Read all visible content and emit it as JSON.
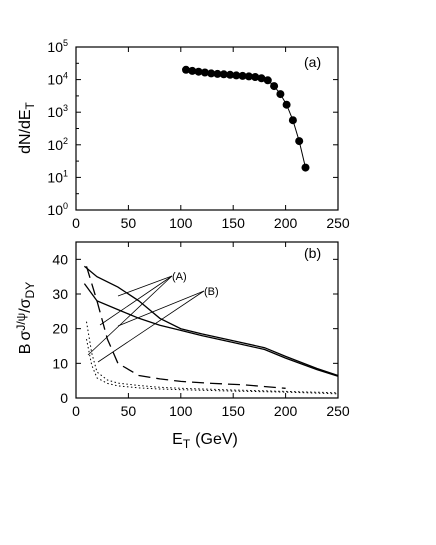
{
  "chart_data": [
    {
      "type": "line",
      "panel_label": "(a)",
      "ylabel_main": "dN/dE",
      "ylabel_sub": "T",
      "xlim": [
        0,
        250
      ],
      "ylim_log10": [
        0,
        5
      ],
      "yscale": "log",
      "x_ticks": [
        "0",
        "50",
        "100",
        "150",
        "200",
        "250"
      ],
      "y_ticks": [
        {
          "base": "10",
          "exp": "0"
        },
        {
          "base": "10",
          "exp": "1"
        },
        {
          "base": "10",
          "exp": "2"
        },
        {
          "base": "10",
          "exp": "3"
        },
        {
          "base": "10",
          "exp": "4"
        },
        {
          "base": "10",
          "exp": "5"
        }
      ],
      "series": [
        {
          "marker": "filled-circle",
          "x": [
            105,
            111,
            117,
            123,
            129,
            135,
            141,
            147,
            153,
            159,
            165,
            171,
            177,
            183,
            189,
            195,
            201,
            207,
            213,
            219
          ],
          "y": [
            20000,
            18500,
            17500,
            16500,
            15500,
            15000,
            14500,
            14000,
            13500,
            13000,
            12500,
            12000,
            11000,
            9500,
            6300,
            3600,
            1700,
            570,
            130,
            20
          ]
        }
      ]
    },
    {
      "type": "line",
      "panel_label": "(b)",
      "xlabel_main": "E",
      "xlabel_sub": "T",
      "xlabel_unit": "(GeV)",
      "ylabel_parts": {
        "b": "B",
        "s1": "σ",
        "j": "J/ψ",
        "slash": "/",
        "s2": "σ",
        "dy": "DY"
      },
      "xlim": [
        0,
        250
      ],
      "ylim": [
        0,
        45
      ],
      "x_ticks": [
        "0",
        "50",
        "100",
        "150",
        "200",
        "250"
      ],
      "y_ticks": [
        "0",
        "10",
        "20",
        "30",
        "40"
      ],
      "annotations": [
        "(A)",
        "(B)"
      ],
      "series": [
        {
          "group": "A",
          "style": "solid",
          "x": [
            8,
            20,
            40,
            60,
            80,
            100,
            120,
            150,
            180,
            200,
            230,
            250
          ],
          "y": [
            38,
            35,
            32,
            28,
            23,
            20,
            18.5,
            16.5,
            14.5,
            12,
            8.5,
            6.5
          ]
        },
        {
          "group": "A",
          "style": "solid",
          "x": [
            8,
            20,
            40,
            60,
            80,
            100,
            120,
            150,
            180,
            200,
            230,
            250
          ],
          "y": [
            33,
            28,
            25.5,
            23,
            21,
            19.5,
            18,
            16,
            14,
            11.5,
            8.2,
            6.3
          ]
        },
        {
          "group": "A",
          "style": "dashed",
          "x": [
            10,
            20,
            30,
            40,
            60,
            80,
            100,
            130,
            160,
            200
          ],
          "y": [
            38,
            28,
            17,
            10,
            6.5,
            5.5,
            4.8,
            4.2,
            3.8,
            2.8
          ]
        },
        {
          "group": "B",
          "style": "dotted",
          "x": [
            10,
            15,
            20,
            30,
            40,
            60,
            80,
            100,
            150,
            200,
            250
          ],
          "y": [
            22,
            13,
            7.5,
            5.2,
            4.3,
            3.6,
            3.1,
            2.8,
            2.3,
            1.9,
            1.5
          ]
        },
        {
          "group": "B",
          "style": "dotted",
          "x": [
            10,
            15,
            20,
            30,
            40,
            60,
            80,
            100,
            150,
            200,
            250
          ],
          "y": [
            17,
            9.5,
            5.8,
            4.2,
            3.5,
            2.9,
            2.6,
            2.4,
            2.0,
            1.7,
            1.2
          ]
        }
      ]
    }
  ]
}
